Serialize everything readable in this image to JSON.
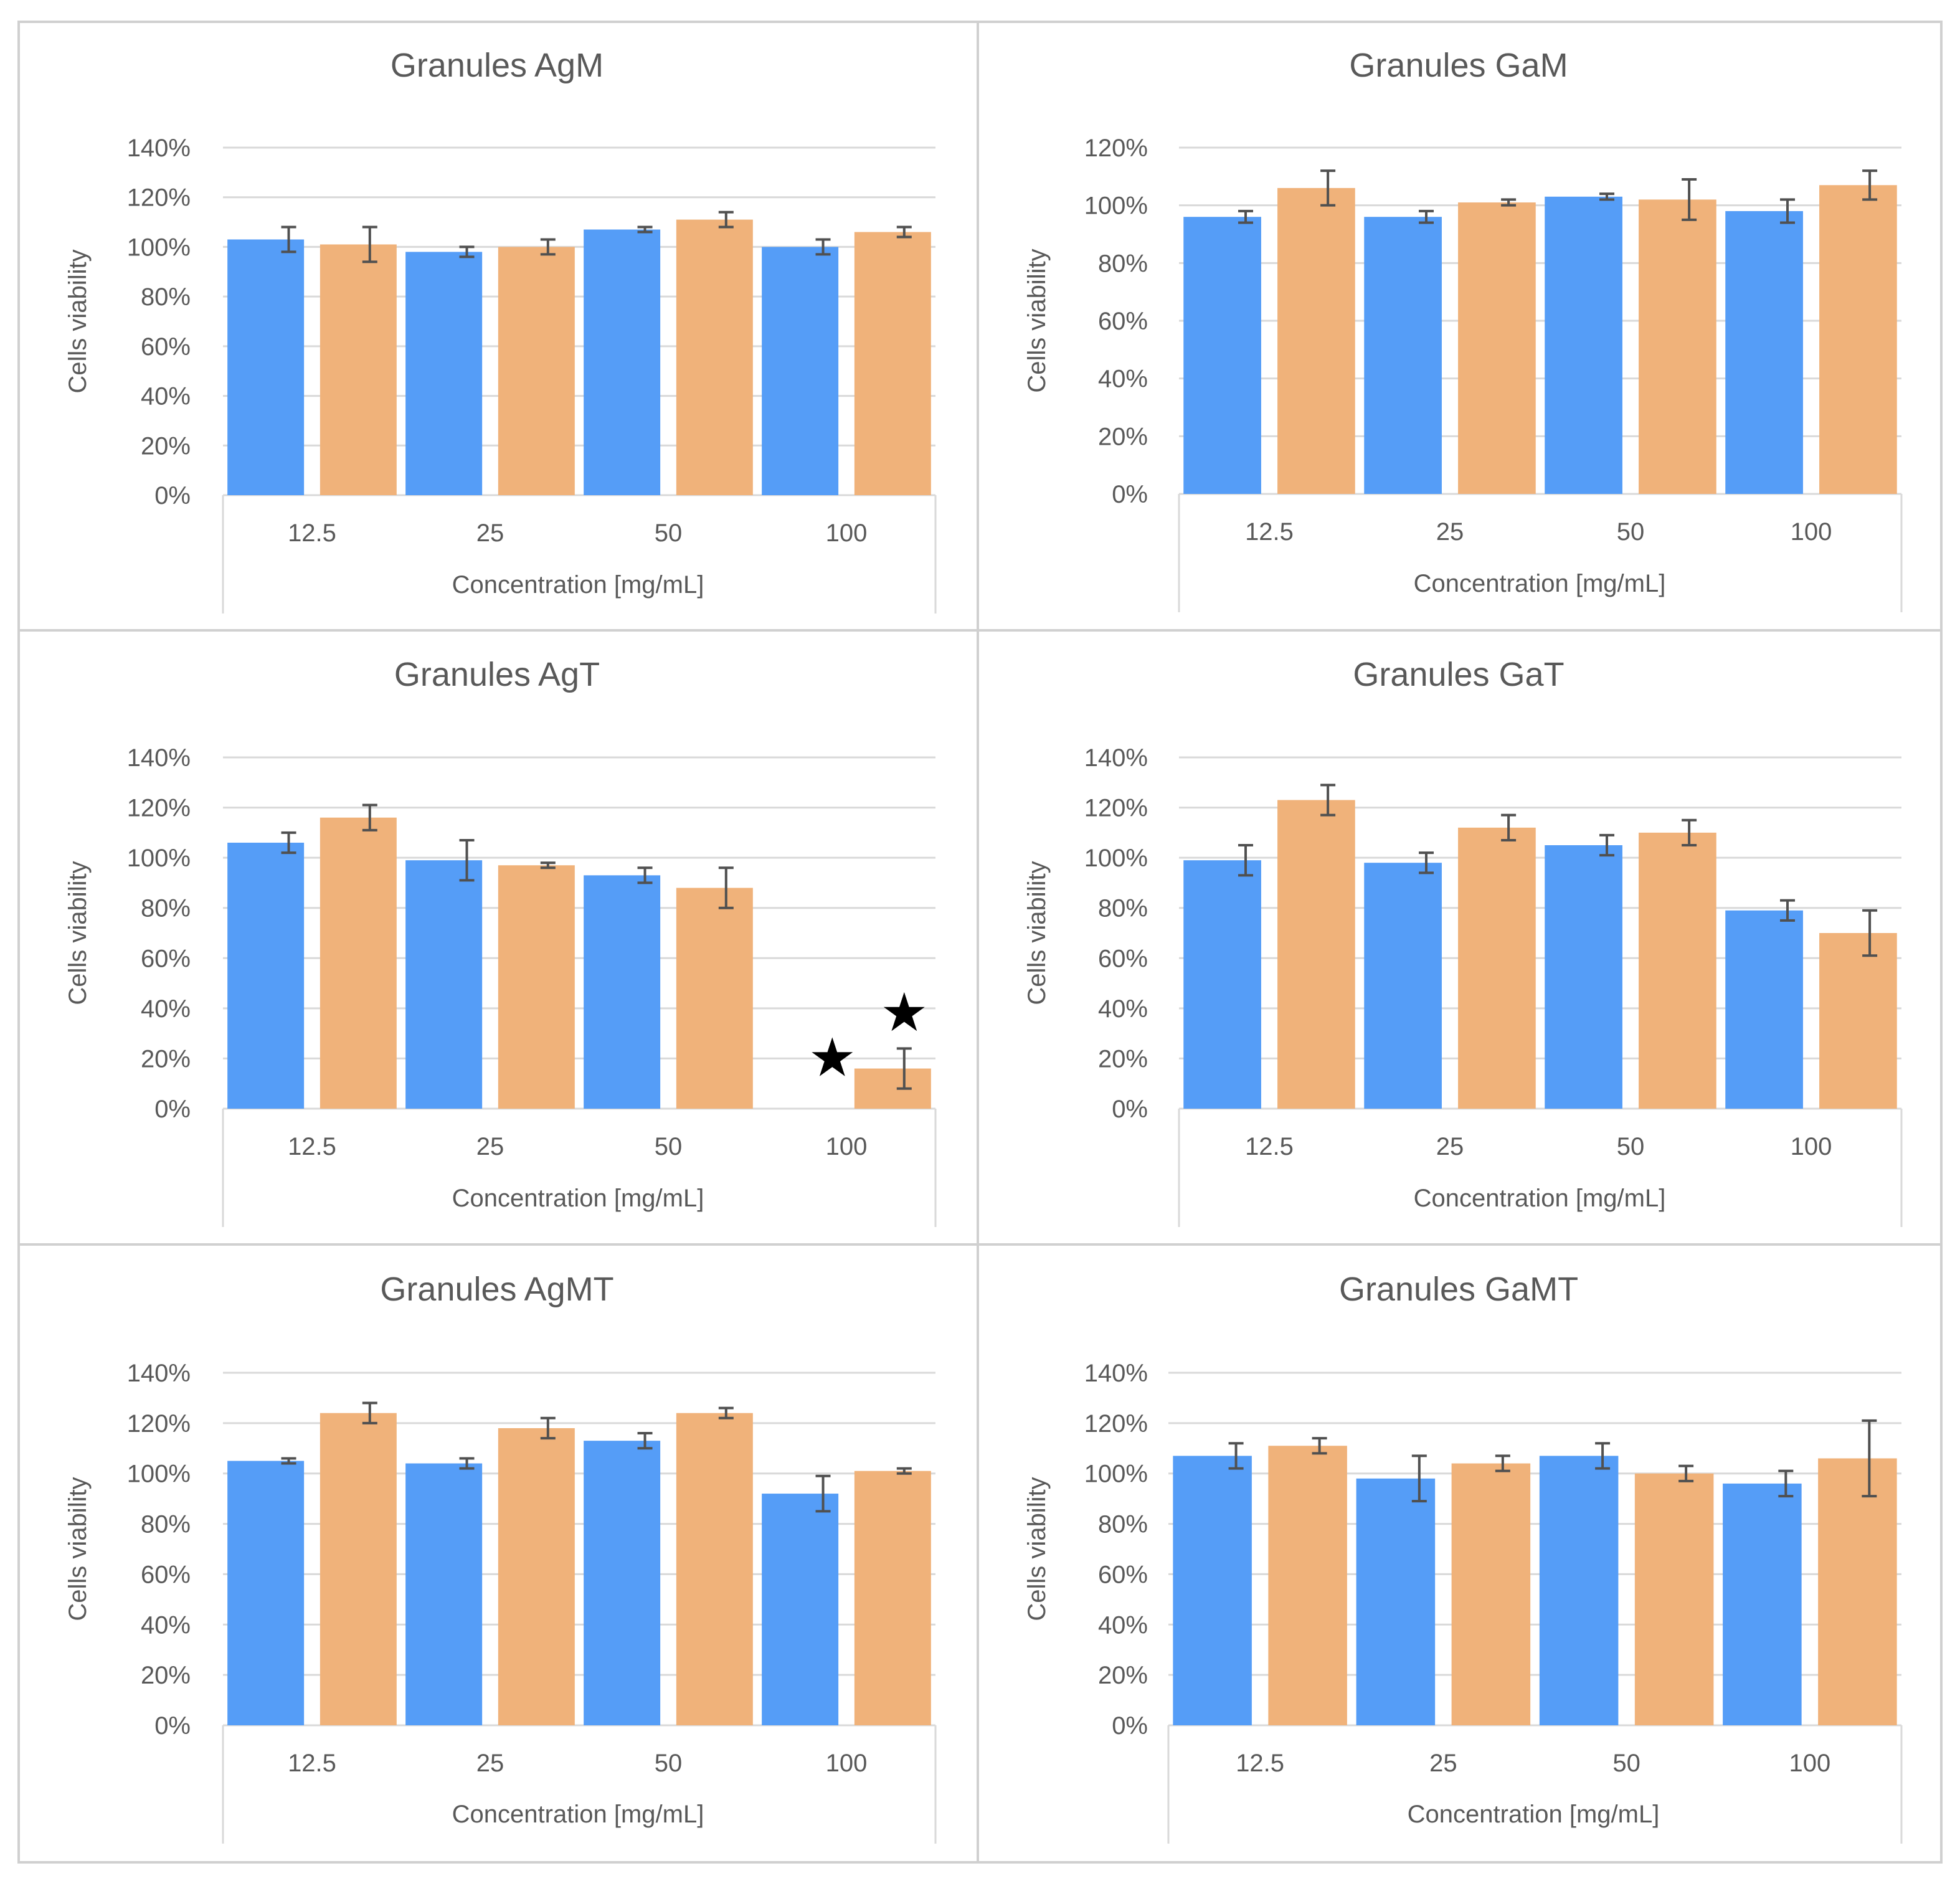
{
  "colors": {
    "series_1": "#559DF7",
    "series_2": "#F0B27A",
    "grid": "#D9D9D9",
    "text": "#595959",
    "error_bar": "#505050",
    "panel_border": "#D0D0D0"
  },
  "chart_data": [
    {
      "type": "bar",
      "title": "Granules AgM",
      "xlabel": "Concentration [mg/mL]",
      "ylabel": "Cells viability",
      "categories": [
        "12.5",
        "25",
        "50",
        "100"
      ],
      "ylim": [
        0,
        1.4
      ],
      "ytick_labels": [
        "0%",
        "20%",
        "40%",
        "60%",
        "80%",
        "100%",
        "120%",
        "140%"
      ],
      "grid": true,
      "legend": false,
      "series": [
        {
          "values": [
            1.03,
            0.98,
            1.07,
            1.0
          ],
          "errors": [
            0.05,
            0.02,
            0.01,
            0.03
          ]
        },
        {
          "values": [
            1.01,
            1.0,
            1.11,
            1.06
          ],
          "errors": [
            0.07,
            0.03,
            0.03,
            0.02
          ]
        }
      ],
      "annotations": []
    },
    {
      "type": "bar",
      "title": "Granules GaM",
      "xlabel": "Concentration [mg/mL]",
      "ylabel": "Cells viability",
      "categories": [
        "12.5",
        "25",
        "50",
        "100"
      ],
      "ylim": [
        0,
        1.2
      ],
      "ytick_labels": [
        "0%",
        "20%",
        "40%",
        "60%",
        "80%",
        "100%",
        "120%"
      ],
      "grid": true,
      "legend": false,
      "series": [
        {
          "values": [
            0.96,
            0.96,
            1.03,
            0.98
          ],
          "errors": [
            0.02,
            0.02,
            0.01,
            0.04
          ]
        },
        {
          "values": [
            1.06,
            1.01,
            1.02,
            1.07
          ],
          "errors": [
            0.06,
            0.01,
            0.07,
            0.05
          ]
        }
      ],
      "annotations": []
    },
    {
      "type": "bar",
      "title": "Granules AgT",
      "xlabel": "Concentration [mg/mL]",
      "ylabel": "Cells viability",
      "categories": [
        "12.5",
        "25",
        "50",
        "100"
      ],
      "ylim": [
        0,
        1.4
      ],
      "ytick_labels": [
        "0%",
        "20%",
        "40%",
        "60%",
        "80%",
        "100%",
        "120%",
        "140%"
      ],
      "grid": true,
      "legend": false,
      "series": [
        {
          "values": [
            1.06,
            0.99,
            0.93,
            0.0
          ],
          "errors": [
            0.04,
            0.08,
            0.03,
            0.0
          ]
        },
        {
          "values": [
            1.16,
            0.97,
            0.88,
            0.16
          ],
          "errors": [
            0.05,
            0.01,
            0.08,
            0.08
          ]
        }
      ],
      "annotations": [
        {
          "symbol": "★",
          "series": 0,
          "category": 3,
          "at": 0.2
        },
        {
          "symbol": "★",
          "series": 1,
          "category": 3,
          "at": 0.38
        }
      ]
    },
    {
      "type": "bar",
      "title": "Granules GaT",
      "xlabel": "Concentration [mg/mL]",
      "ylabel": "Cells viability",
      "categories": [
        "12.5",
        "25",
        "50",
        "100"
      ],
      "ylim": [
        0,
        1.4
      ],
      "ytick_labels": [
        "0%",
        "20%",
        "40%",
        "60%",
        "80%",
        "100%",
        "120%",
        "140%"
      ],
      "grid": true,
      "legend": false,
      "series": [
        {
          "values": [
            0.99,
            0.98,
            1.05,
            0.79
          ],
          "errors": [
            0.06,
            0.04,
            0.04,
            0.04
          ]
        },
        {
          "values": [
            1.23,
            1.12,
            1.1,
            0.7
          ],
          "errors": [
            0.06,
            0.05,
            0.05,
            0.09
          ]
        }
      ],
      "annotations": []
    },
    {
      "type": "bar",
      "title": "Granules AgMT",
      "xlabel": "Concentration [mg/mL]",
      "ylabel": "Cells viability",
      "categories": [
        "12.5",
        "25",
        "50",
        "100"
      ],
      "ylim": [
        0,
        1.4
      ],
      "ytick_labels": [
        "0%",
        "20%",
        "40%",
        "60%",
        "80%",
        "100%",
        "120%",
        "140%"
      ],
      "grid": true,
      "legend": false,
      "series": [
        {
          "values": [
            1.05,
            1.04,
            1.13,
            0.92
          ],
          "errors": [
            0.01,
            0.02,
            0.03,
            0.07
          ]
        },
        {
          "values": [
            1.24,
            1.18,
            1.24,
            1.01
          ],
          "errors": [
            0.04,
            0.04,
            0.02,
            0.01
          ]
        }
      ],
      "annotations": []
    },
    {
      "type": "bar",
      "title": "Granules GaMT",
      "xlabel": "Concentration [mg/mL]",
      "ylabel": "Cells viability",
      "categories": [
        "12.5",
        "25",
        "50",
        "100"
      ],
      "ylim": [
        0,
        1.4
      ],
      "ytick_labels": [
        "0%",
        "20%",
        "40%",
        "60%",
        "80%",
        "100%",
        "120%",
        "140%"
      ],
      "grid": true,
      "legend": false,
      "series": [
        {
          "values": [
            1.07,
            0.98,
            1.07,
            0.96
          ],
          "errors": [
            0.05,
            0.09,
            0.05,
            0.05
          ]
        },
        {
          "values": [
            1.11,
            1.04,
            1.0,
            1.06
          ],
          "errors": [
            0.03,
            0.03,
            0.03,
            0.15
          ]
        }
      ],
      "annotations": []
    }
  ]
}
